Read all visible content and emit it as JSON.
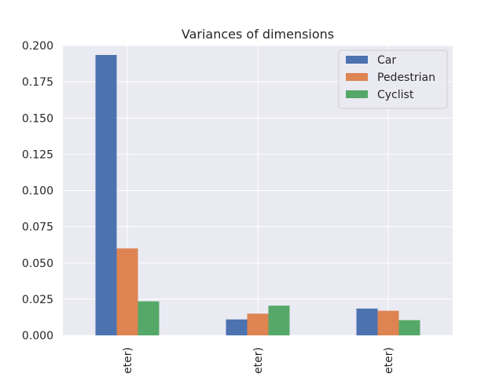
{
  "chart_data": {
    "type": "bar",
    "title": "Variances of dimensions",
    "xlabel": "",
    "ylabel": "",
    "categories": [
      "eter)",
      "eter)",
      "eter)"
    ],
    "series": [
      {
        "name": "Car",
        "color": "#4c72b0",
        "values": [
          0.1935,
          0.011,
          0.0185
        ]
      },
      {
        "name": "Pedestrian",
        "color": "#dd8452",
        "values": [
          0.06,
          0.015,
          0.017
        ]
      },
      {
        "name": "Cyclist",
        "color": "#55a868",
        "values": [
          0.0235,
          0.0205,
          0.0105
        ]
      }
    ],
    "ylim": [
      0,
      0.2
    ],
    "yticks": [
      "0.000",
      "0.025",
      "0.050",
      "0.075",
      "0.100",
      "0.125",
      "0.150",
      "0.175",
      "0.200"
    ],
    "grid": true,
    "legend_position": "top-right",
    "background_color": "#eaeaf2",
    "grid_color": "#ffffff"
  }
}
